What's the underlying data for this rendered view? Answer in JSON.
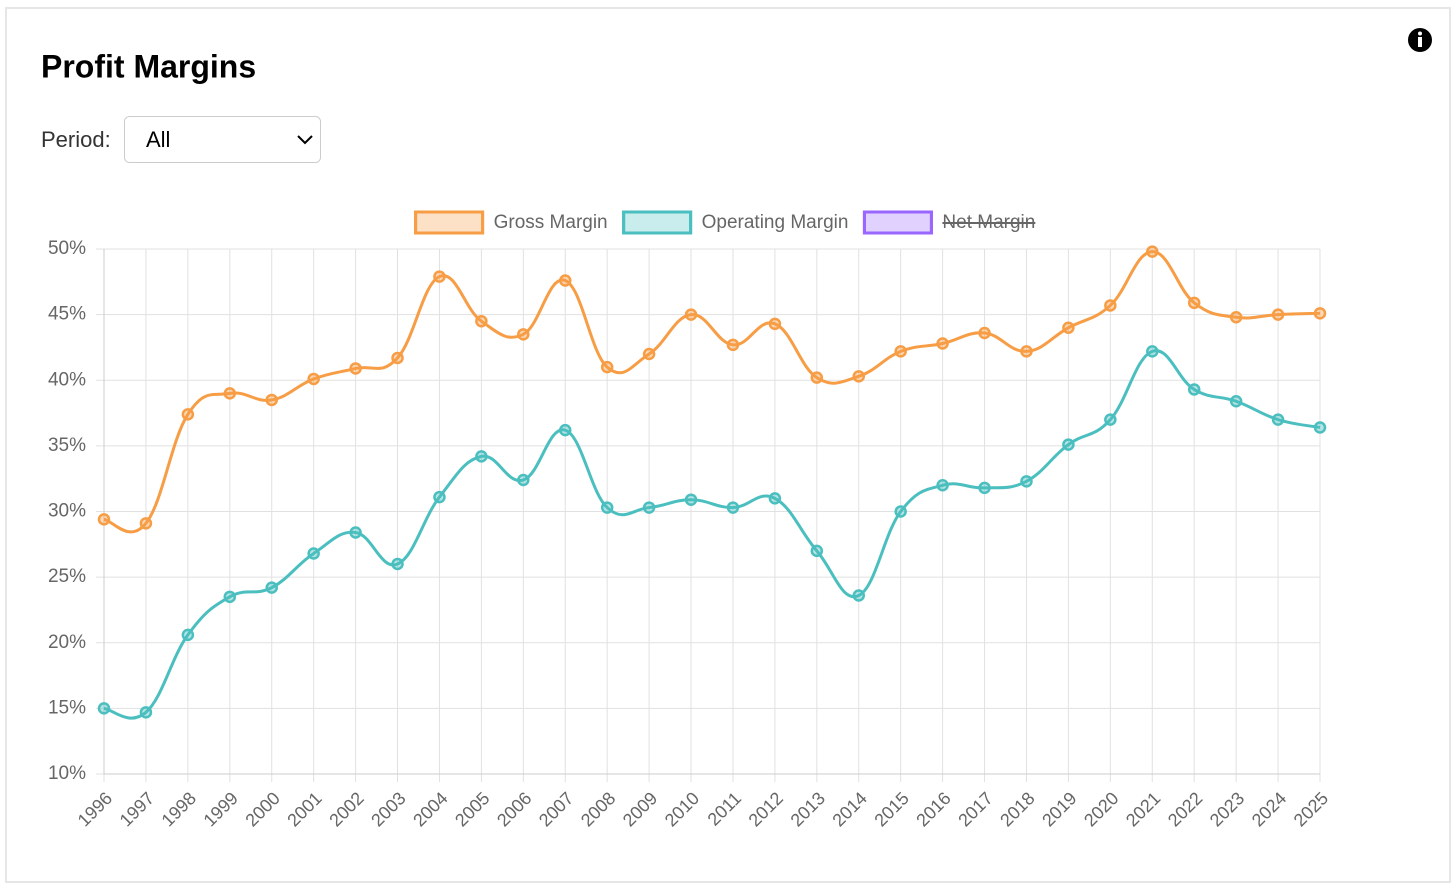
{
  "title": "Profit Margins",
  "period_label": "Period:",
  "period_value": "All",
  "chart_data": {
    "type": "line",
    "categories": [
      "1996",
      "1997",
      "1998",
      "1999",
      "2000",
      "2001",
      "2002",
      "2003",
      "2004",
      "2005",
      "2006",
      "2007",
      "2008",
      "2009",
      "2010",
      "2011",
      "2012",
      "2013",
      "2014",
      "2015",
      "2016",
      "2017",
      "2018",
      "2019",
      "2020",
      "2021",
      "2022",
      "2023",
      "2024",
      "2025"
    ],
    "series": [
      {
        "name": "Gross Margin",
        "color": "#f79d45",
        "values": [
          29.4,
          29.1,
          37.4,
          39.0,
          38.5,
          40.1,
          40.9,
          41.7,
          47.9,
          44.5,
          43.5,
          47.6,
          41.0,
          42.0,
          45.0,
          42.7,
          44.3,
          40.2,
          40.3,
          42.2,
          42.8,
          43.6,
          42.2,
          44.0,
          45.7,
          49.8,
          45.9,
          44.8,
          45.0,
          45.1
        ]
      },
      {
        "name": "Operating Margin",
        "color": "#4bbfbf",
        "values": [
          15.0,
          14.7,
          20.6,
          23.5,
          24.2,
          26.8,
          28.4,
          26.0,
          31.1,
          34.2,
          32.4,
          36.2,
          30.3,
          30.3,
          30.9,
          30.3,
          31.0,
          27.0,
          23.6,
          30.0,
          32.0,
          31.8,
          32.3,
          35.1,
          37.0,
          42.2,
          39.3,
          38.4,
          37.0,
          36.4
        ]
      },
      {
        "name": "Net Margin",
        "color": "#9966ff",
        "hidden": true
      }
    ],
    "ylim": [
      10,
      50
    ],
    "yticks": [
      {
        "value": 10,
        "label": "10%"
      },
      {
        "value": 15,
        "label": "15%"
      },
      {
        "value": 20,
        "label": "20%"
      },
      {
        "value": 25,
        "label": "25%"
      },
      {
        "value": 30,
        "label": "30%"
      },
      {
        "value": 35,
        "label": "35%"
      },
      {
        "value": 40,
        "label": "40%"
      },
      {
        "value": 45,
        "label": "45%"
      },
      {
        "value": 50,
        "label": "50%"
      }
    ],
    "grid": true,
    "legend": "top"
  }
}
